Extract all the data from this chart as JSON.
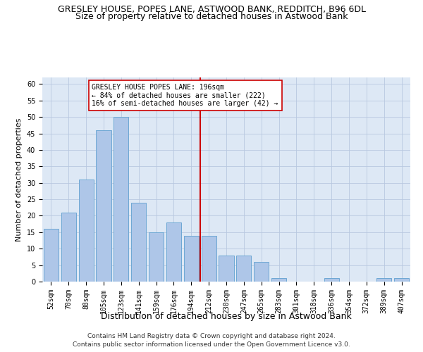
{
  "title": "GRESLEY HOUSE, POPES LANE, ASTWOOD BANK, REDDITCH, B96 6DL",
  "subtitle": "Size of property relative to detached houses in Astwood Bank",
  "xlabel": "Distribution of detached houses by size in Astwood Bank",
  "ylabel": "Number of detached properties",
  "categories": [
    "52sqm",
    "70sqm",
    "88sqm",
    "105sqm",
    "123sqm",
    "141sqm",
    "159sqm",
    "176sqm",
    "194sqm",
    "212sqm",
    "230sqm",
    "247sqm",
    "265sqm",
    "283sqm",
    "301sqm",
    "318sqm",
    "336sqm",
    "354sqm",
    "372sqm",
    "389sqm",
    "407sqm"
  ],
  "values": [
    16,
    21,
    31,
    46,
    50,
    24,
    15,
    18,
    14,
    14,
    8,
    8,
    6,
    1,
    0,
    0,
    1,
    0,
    0,
    1,
    1
  ],
  "bar_color": "#aec6e8",
  "bar_edge_color": "#6da7d4",
  "vline_x_idx": 8.5,
  "vline_color": "#cc0000",
  "annotation_line1": "GRESLEY HOUSE POPES LANE: 196sqm",
  "annotation_line2": "← 84% of detached houses are smaller (222)",
  "annotation_line3": "16% of semi-detached houses are larger (42) →",
  "annotation_box_color": "#cc0000",
  "ylim": [
    0,
    62
  ],
  "yticks": [
    0,
    5,
    10,
    15,
    20,
    25,
    30,
    35,
    40,
    45,
    50,
    55,
    60
  ],
  "background_color": "#dde8f5",
  "grid_color": "#b8c8e0",
  "footer_line1": "Contains HM Land Registry data © Crown copyright and database right 2024.",
  "footer_line2": "Contains public sector information licensed under the Open Government Licence v3.0.",
  "title_fontsize": 9,
  "subtitle_fontsize": 9,
  "xlabel_fontsize": 9,
  "ylabel_fontsize": 8,
  "tick_fontsize": 7,
  "annotation_fontsize": 7,
  "footer_fontsize": 6.5
}
